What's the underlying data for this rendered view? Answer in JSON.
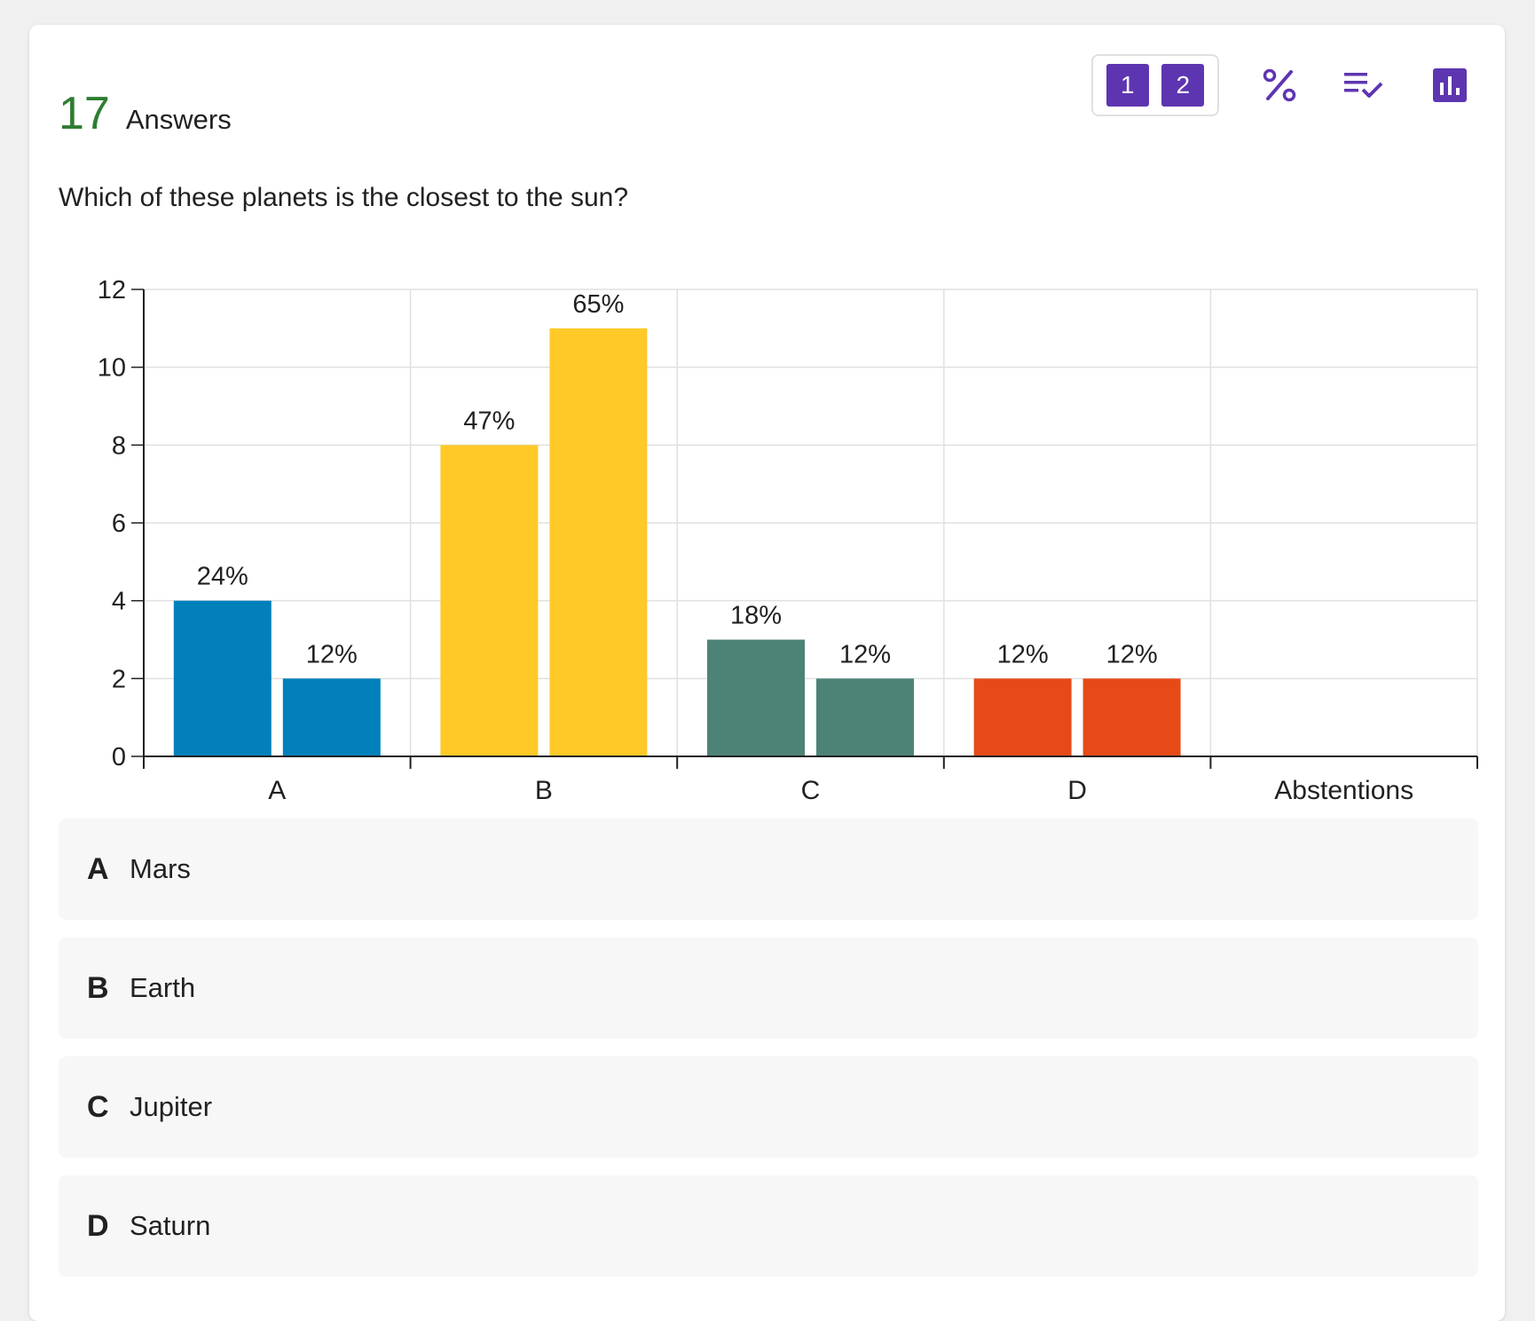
{
  "header": {
    "answer_count": "17",
    "answer_label": "Answers"
  },
  "toolbar": {
    "rounds": [
      {
        "label": "1"
      },
      {
        "label": "2"
      }
    ],
    "icons": [
      "percent-icon",
      "checklist-icon",
      "bar-chart-icon"
    ],
    "accent_color": "#5e35b1"
  },
  "question": "Which of these planets is the closest to the sun?",
  "chart_data": {
    "type": "bar",
    "categories": [
      "A",
      "B",
      "C",
      "D",
      "Abstentions"
    ],
    "series": [
      {
        "values": [
          4,
          8,
          3,
          2,
          0
        ],
        "labels": [
          "24%",
          "47%",
          "18%",
          "12%",
          ""
        ]
      },
      {
        "values": [
          2,
          11,
          2,
          2,
          0
        ],
        "labels": [
          "12%",
          "65%",
          "12%",
          "12%",
          ""
        ]
      }
    ],
    "category_colors": [
      "#0280bc",
      "#ffca28",
      "#4d8377",
      "#e64a19",
      "#cccccc"
    ],
    "y_ticks": [
      "0",
      "2",
      "4",
      "6",
      "8",
      "10",
      "12"
    ],
    "ylim": [
      0,
      12
    ],
    "grid": true
  },
  "options": [
    {
      "letter": "A",
      "text": "Mars"
    },
    {
      "letter": "B",
      "text": "Earth"
    },
    {
      "letter": "C",
      "text": "Jupiter"
    },
    {
      "letter": "D",
      "text": "Saturn"
    }
  ]
}
